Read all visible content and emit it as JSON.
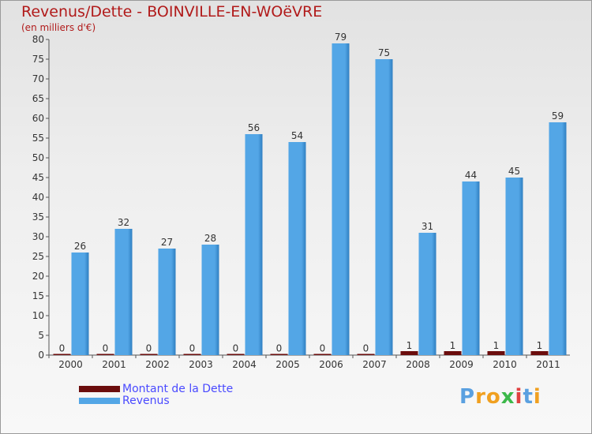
{
  "colors": {
    "debt": "#6b0d0d",
    "revenue": "#53a6e6",
    "revenue_dark": "#2f7fc1",
    "title": "#b11a1a"
  },
  "chart_data": {
    "type": "bar",
    "title": "Revenus/Dette - BOINVILLE-EN-WOëVRE",
    "subtitle": "(en milliers d'€)",
    "categories": [
      "2000",
      "2001",
      "2002",
      "2003",
      "2004",
      "2005",
      "2006",
      "2007",
      "2008",
      "2009",
      "2010",
      "2011"
    ],
    "series": [
      {
        "name": "Montant de la Dette",
        "values": [
          0,
          0,
          0,
          0,
          0,
          0,
          0,
          0,
          1,
          1,
          1,
          1
        ]
      },
      {
        "name": "Revenus",
        "values": [
          26,
          32,
          27,
          28,
          56,
          54,
          79,
          75,
          31,
          44,
          45,
          59
        ]
      }
    ],
    "ylim": [
      0,
      80
    ],
    "yticks": [
      0,
      5,
      10,
      15,
      20,
      25,
      30,
      35,
      40,
      45,
      50,
      55,
      60,
      65,
      70,
      75,
      80
    ],
    "grid": false,
    "legend": "bottom-left"
  },
  "logo": {
    "letters": [
      {
        "ch": "P",
        "color": "#5aa0e0"
      },
      {
        "ch": "r",
        "color": "#f0a020"
      },
      {
        "ch": "o",
        "color": "#f0a020"
      },
      {
        "ch": "x",
        "color": "#3cb84a"
      },
      {
        "ch": "i",
        "color": "#e04040"
      },
      {
        "ch": "t",
        "color": "#5aa0e0"
      },
      {
        "ch": "i",
        "color": "#f0a020"
      }
    ]
  }
}
